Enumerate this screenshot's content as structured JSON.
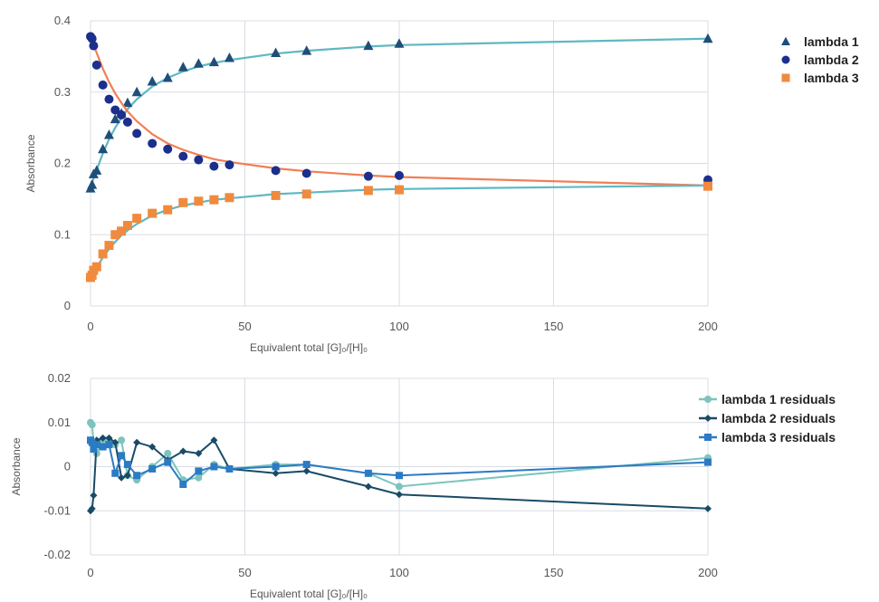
{
  "chart_data": [
    {
      "type": "scatter",
      "title": "",
      "xlabel": "Equivalent total [G]₀/[H]₀",
      "ylabel": "Absorbance",
      "xlim": [
        0,
        200
      ],
      "ylim": [
        0,
        0.4
      ],
      "x_ticks": [
        "0",
        "50",
        "100",
        "150",
        "200"
      ],
      "y_ticks": [
        "0",
        "0.1",
        "0.2",
        "0.3",
        "0.4"
      ],
      "grid": true,
      "legend_position": "top-right",
      "series": [
        {
          "name": "lambda 1",
          "marker": "triangle",
          "color": "#1f4e79",
          "fit_color": "#5fb8c2",
          "x": [
            0,
            0.5,
            1,
            2,
            4,
            6,
            8,
            10,
            12,
            15,
            20,
            25,
            30,
            35,
            40,
            45,
            60,
            70,
            90,
            100,
            200
          ],
          "y": [
            0.165,
            0.17,
            0.185,
            0.19,
            0.22,
            0.24,
            0.262,
            0.27,
            0.285,
            0.3,
            0.315,
            0.32,
            0.335,
            0.34,
            0.342,
            0.348,
            0.355,
            0.358,
            0.365,
            0.368,
            0.375
          ],
          "fit_y": [
            0.165,
            0.172,
            0.179,
            0.191,
            0.214,
            0.234,
            0.25,
            0.264,
            0.276,
            0.29,
            0.308,
            0.32,
            0.329,
            0.336,
            0.341,
            0.345,
            0.354,
            0.358,
            0.364,
            0.366,
            0.375
          ]
        },
        {
          "name": "lambda 2",
          "marker": "circle",
          "color": "#1c2f8c",
          "fit_color": "#f07f55",
          "x": [
            0,
            0.5,
            1,
            2,
            4,
            6,
            8,
            10,
            12,
            15,
            20,
            25,
            30,
            35,
            40,
            45,
            60,
            70,
            90,
            100,
            200
          ],
          "y": [
            0.378,
            0.375,
            0.365,
            0.338,
            0.31,
            0.29,
            0.275,
            0.268,
            0.258,
            0.242,
            0.228,
            0.22,
            0.21,
            0.205,
            0.196,
            0.198,
            0.19,
            0.186,
            0.182,
            0.183,
            0.177
          ],
          "fit_y": [
            0.378,
            0.372,
            0.366,
            0.355,
            0.333,
            0.314,
            0.298,
            0.285,
            0.273,
            0.259,
            0.241,
            0.228,
            0.219,
            0.212,
            0.206,
            0.202,
            0.193,
            0.189,
            0.183,
            0.181,
            0.169
          ]
        },
        {
          "name": "lambda 3",
          "marker": "square",
          "color": "#f08a3e",
          "fit_color": "#5fb8c2",
          "x": [
            0,
            0.5,
            1,
            2,
            4,
            6,
            8,
            10,
            12,
            15,
            20,
            25,
            30,
            35,
            40,
            45,
            60,
            70,
            90,
            100,
            200
          ],
          "y": [
            0.04,
            0.043,
            0.05,
            0.055,
            0.073,
            0.085,
            0.1,
            0.105,
            0.113,
            0.123,
            0.13,
            0.135,
            0.145,
            0.147,
            0.149,
            0.152,
            0.155,
            0.157,
            0.162,
            0.163,
            0.168
          ],
          "fit_y": [
            0.04,
            0.043,
            0.047,
            0.054,
            0.068,
            0.08,
            0.09,
            0.099,
            0.106,
            0.115,
            0.127,
            0.135,
            0.141,
            0.145,
            0.149,
            0.151,
            0.157,
            0.159,
            0.163,
            0.164,
            0.169
          ]
        }
      ]
    },
    {
      "type": "line",
      "title": "",
      "xlabel": "Equivalent total [G]₀/[H]₀",
      "ylabel": "Absorbance",
      "xlim": [
        0,
        200
      ],
      "ylim": [
        -0.02,
        0.02
      ],
      "x_ticks": [
        "0",
        "50",
        "100",
        "150",
        "200"
      ],
      "y_ticks": [
        "-0.02",
        "-0.01",
        "0",
        "0.01",
        "0.02"
      ],
      "grid": true,
      "legend_position": "top-right",
      "series": [
        {
          "name": "lambda 1 residuals",
          "marker": "circle",
          "color": "#7cc4bd",
          "x": [
            0,
            0.5,
            1,
            2,
            4,
            6,
            8,
            10,
            12,
            15,
            20,
            25,
            30,
            35,
            40,
            45,
            60,
            70,
            90,
            100,
            200
          ],
          "y": [
            0.01,
            0.0095,
            0.0055,
            0.003,
            0.006,
            0.006,
            0.005,
            0.006,
            -0.002,
            -0.003,
            0.0,
            0.003,
            -0.003,
            -0.0025,
            0.0005,
            -0.0005,
            0.0005,
            0.0005,
            -0.0015,
            -0.0045,
            0.002
          ]
        },
        {
          "name": "lambda 2 residuals",
          "marker": "diamond",
          "color": "#1a4a66",
          "x": [
            0,
            0.5,
            1,
            2,
            4,
            6,
            8,
            10,
            12,
            15,
            20,
            25,
            30,
            35,
            40,
            45,
            60,
            70,
            90,
            100,
            200
          ],
          "y": [
            -0.01,
            -0.0095,
            -0.0065,
            0.006,
            0.0065,
            0.0065,
            0.0055,
            -0.0025,
            -0.002,
            0.0055,
            0.0045,
            0.0015,
            0.0035,
            0.003,
            0.006,
            -0.0005,
            -0.0015,
            -0.001,
            -0.0045,
            -0.0063,
            -0.0095
          ]
        },
        {
          "name": "lambda 3 residuals",
          "marker": "square",
          "color": "#2b7bc4",
          "x": [
            0,
            0.5,
            1,
            2,
            4,
            6,
            8,
            10,
            12,
            15,
            20,
            25,
            30,
            35,
            40,
            45,
            60,
            70,
            90,
            100,
            200
          ],
          "y": [
            0.006,
            0.0055,
            0.004,
            0.005,
            0.0045,
            0.005,
            -0.0015,
            0.0025,
            0.0005,
            -0.002,
            -0.0005,
            0.001,
            -0.004,
            -0.001,
            0.0,
            -0.0005,
            0.0,
            0.0005,
            -0.0015,
            -0.002,
            0.001
          ]
        }
      ]
    }
  ]
}
